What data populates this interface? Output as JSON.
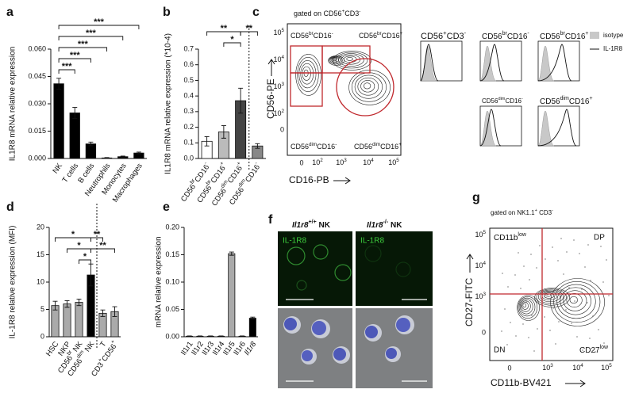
{
  "chart_data": [
    {
      "type": "bar",
      "label": "a",
      "ylabel": "IL1R8 mRNA relative expression",
      "categories": [
        "NK",
        "T cells",
        "B cells",
        "Neutrophils",
        "Monocytes",
        "Macrophages"
      ],
      "values": [
        0.041,
        0.025,
        0.008,
        0.0003,
        0.001,
        0.003
      ],
      "errors": [
        0.003,
        0.003,
        0.001,
        0.0002,
        0.0003,
        0.0005
      ],
      "colors": [
        "#000000",
        "#000000",
        "#000000",
        "#000000",
        "#000000",
        "#000000"
      ],
      "ylim": [
        0,
        0.06
      ],
      "yticks": [
        {
          "value": 0,
          "label": "0.000"
        },
        {
          "value": 0.015,
          "label": "0.015"
        },
        {
          "value": 0.03,
          "label": "0.030"
        },
        {
          "value": 0.045,
          "label": "0.045"
        },
        {
          "value": 0.06,
          "label": "0.060"
        }
      ],
      "annotations": [
        "***",
        "***",
        "***",
        "***",
        "***"
      ]
    },
    {
      "type": "bar",
      "label": "b",
      "ylabel": "IL1R8 mRNA relative expression (*10-4)",
      "categories": [
        "CD56brCD16-",
        "CD56brCD16+",
        "CD56dimCD16+",
        "CD56dimCD16-"
      ],
      "values": [
        0.11,
        0.17,
        0.37,
        0.08
      ],
      "errors": [
        0.03,
        0.04,
        0.08,
        0.015
      ],
      "colors": [
        "#ffffff",
        "#bbbbbb",
        "#444444",
        "#888888"
      ],
      "ylim": [
        0,
        0.7
      ],
      "yticks": [
        {
          "value": 0,
          "label": "0.0"
        },
        0.1,
        0.2,
        0.3,
        0.4,
        0.5,
        0.6,
        0.7
      ],
      "annotations": [
        "**",
        "*",
        "**"
      ]
    },
    {
      "type": "bar",
      "label": "d",
      "ylabel": "IL-1R8 relative expression (MFI)",
      "categories": [
        "HSC",
        "NKP",
        "CD56br NK",
        "CD56dim NK",
        "T",
        "CD3+CD56+"
      ],
      "values": [
        5.7,
        6.0,
        6.3,
        11.3,
        4.3,
        4.6
      ],
      "errors": [
        0.8,
        0.6,
        0.6,
        2.0,
        0.6,
        0.9
      ],
      "colors": [
        "#aaaaaa",
        "#aaaaaa",
        "#aaaaaa",
        "#000000",
        "#aaaaaa",
        "#aaaaaa"
      ],
      "ylim": [
        0,
        20
      ],
      "yticks": [
        0,
        5,
        10,
        15,
        20
      ],
      "annotations": [
        "*",
        "*",
        "*",
        "**",
        "**"
      ]
    },
    {
      "type": "bar",
      "label": "e",
      "ylabel": "mRNA relative expression",
      "categories": [
        "Il1r1",
        "Il1r2",
        "Il1r3",
        "Il1r4",
        "Il1r5",
        "Il1r6",
        "Il1r8"
      ],
      "values": [
        0.001,
        0.001,
        0.001,
        0.001,
        0.152,
        0.001,
        0.034
      ],
      "errors": [
        0.0005,
        0.0005,
        0.0005,
        0.0005,
        0.003,
        0.0005,
        0.002
      ],
      "colors": [
        "#aaaaaa",
        "#aaaaaa",
        "#aaaaaa",
        "#aaaaaa",
        "#aaaaaa",
        "#aaaaaa",
        "#000000"
      ],
      "ylim": [
        0,
        0.2
      ],
      "yticks": [
        {
          "value": 0,
          "label": "0.00"
        },
        {
          "value": 0.05,
          "label": "0.05"
        },
        {
          "value": 0.1,
          "label": "0.10"
        },
        {
          "value": 0.15,
          "label": "0.15"
        },
        {
          "value": 0.2,
          "label": "0.20"
        }
      ],
      "annotations": []
    }
  ],
  "panel_c": {
    "label": "c",
    "gate": "gated on CD56+CD3-",
    "quadrants": [
      "CD56brCD16-",
      "CD56brCD16+",
      "CD56dimCD16-",
      "CD56dimCD16+"
    ],
    "ylabel": "CD56-PE",
    "xlabel": "CD16-PB",
    "yticks": [
      "105",
      "104",
      "103",
      "102",
      "0"
    ],
    "xticks": [
      "0",
      "102",
      "103",
      "104",
      "105"
    ],
    "histograms": [
      "CD56+CD3-",
      "CD56brCD16-",
      "CD56brCD16+",
      "CD56dimCD16-",
      "CD56dimCD16+"
    ],
    "legend": [
      "isotype",
      "IL-1R8"
    ]
  },
  "panel_f": {
    "label": "f",
    "columns": [
      "Il1r8+/+ NK",
      "Il1r8-/- NK"
    ],
    "stain": [
      "IL-1R8",
      "IL-1R8"
    ]
  },
  "panel_g": {
    "label": "g",
    "gate": "gated on NK1.1+ CD3-",
    "quadrants": [
      "CD11blow",
      "DP",
      "DN",
      "CD27low"
    ],
    "ylabel": "CD27-FITC",
    "xlabel": "CD11b-BV421",
    "yticks": [
      "105",
      "104",
      "103",
      "0"
    ],
    "xticks": [
      "0",
      "103",
      "104",
      "105"
    ]
  }
}
